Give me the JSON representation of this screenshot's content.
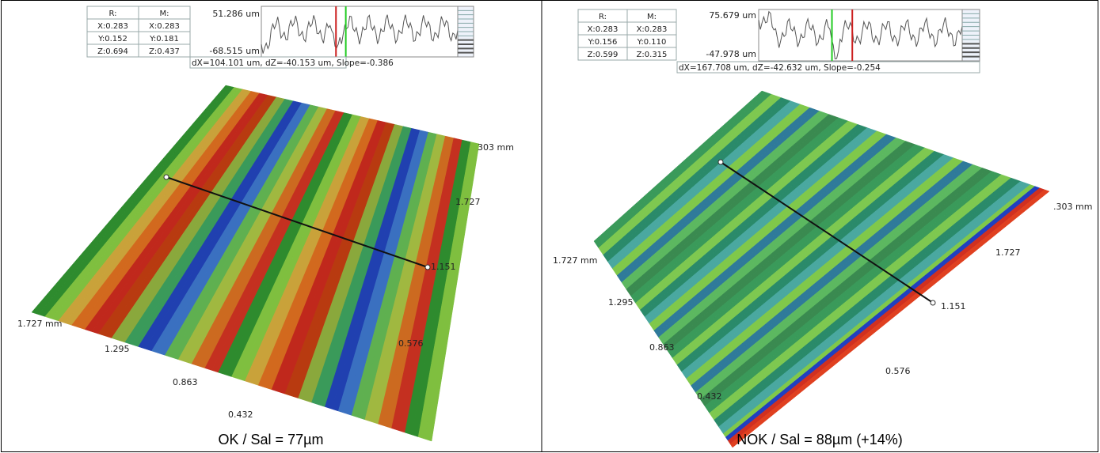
{
  "panels": [
    {
      "table": {
        "headers": [
          "R:",
          "M:"
        ],
        "rows": [
          [
            "X:0.283",
            "X:0.283"
          ],
          [
            "Y:0.152",
            "Y:0.181"
          ],
          [
            "Z:0.694",
            "Z:0.437"
          ]
        ]
      },
      "z_max": "51.286 um",
      "z_min": "-68.515 um",
      "summary": "dX=104.101 um, dZ=-40.153 um, Slope=-0.386",
      "axis_labels": [
        "303 mm",
        "1.727",
        "1.151",
        "0.576",
        "1.727 mm",
        "1.295",
        "0.863",
        "0.432"
      ],
      "caption": "OK / Sal = 77µm"
    },
    {
      "table": {
        "headers": [
          "R:",
          "M:"
        ],
        "rows": [
          [
            "X:0.283",
            "X:0.283"
          ],
          [
            "Y:0.156",
            "Y:0.110"
          ],
          [
            "Z:0.599",
            "Z:0.315"
          ]
        ]
      },
      "z_max": "75.679 um",
      "z_min": "-47.978 um",
      "summary": "dX=167.708 um, dZ=-42.632 um, Slope=-0.254",
      "axis_labels": [
        ".303 mm",
        "1.727",
        "1.151",
        "0.576",
        "1.727 mm",
        "1.295",
        "0.863",
        "0.432"
      ],
      "caption": "NOK / Sal = 88µm (+14%)"
    }
  ]
}
